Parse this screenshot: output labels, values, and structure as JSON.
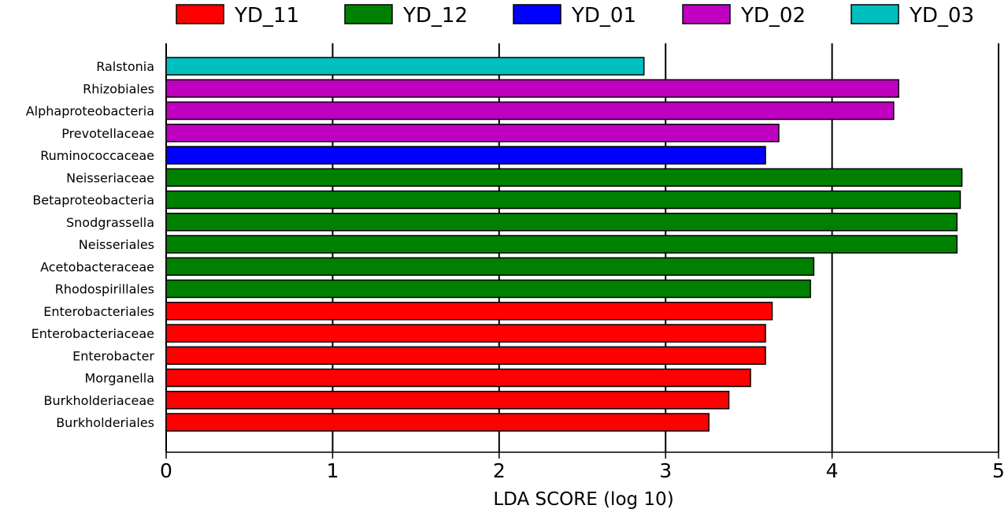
{
  "chart_data": {
    "type": "bar",
    "orientation": "horizontal",
    "title": "",
    "xlabel": "LDA SCORE (log 10)",
    "ylabel": "",
    "xlim": [
      0,
      5
    ],
    "xticks": [
      "0",
      "1",
      "2",
      "3",
      "4",
      "5"
    ],
    "grid": true,
    "legend_position": "top",
    "legend": [
      {
        "name": "YD_11",
        "color": "#ff0000"
      },
      {
        "name": "YD_12",
        "color": "#008000"
      },
      {
        "name": "YD_01",
        "color": "#0000ff"
      },
      {
        "name": "YD_02",
        "color": "#c000c0"
      },
      {
        "name": "YD_03",
        "color": "#00bfbf"
      }
    ],
    "bars": [
      {
        "label": "Ralstonia",
        "value": 2.87,
        "group": "YD_03"
      },
      {
        "label": "Rhizobiales",
        "value": 4.4,
        "group": "YD_02"
      },
      {
        "label": "Alphaproteobacteria",
        "value": 4.37,
        "group": "YD_02"
      },
      {
        "label": "Prevotellaceae",
        "value": 3.68,
        "group": "YD_02"
      },
      {
        "label": "Ruminococcaceae",
        "value": 3.6,
        "group": "YD_01"
      },
      {
        "label": "Neisseriaceae",
        "value": 4.78,
        "group": "YD_12"
      },
      {
        "label": "Betaproteobacteria",
        "value": 4.77,
        "group": "YD_12"
      },
      {
        "label": "Snodgrassella",
        "value": 4.75,
        "group": "YD_12"
      },
      {
        "label": "Neisseriales",
        "value": 4.75,
        "group": "YD_12"
      },
      {
        "label": "Acetobacteraceae",
        "value": 3.89,
        "group": "YD_12"
      },
      {
        "label": "Rhodospirillales",
        "value": 3.87,
        "group": "YD_12"
      },
      {
        "label": "Enterobacteriales",
        "value": 3.64,
        "group": "YD_11"
      },
      {
        "label": "Enterobacteriaceae",
        "value": 3.6,
        "group": "YD_11"
      },
      {
        "label": "Enterobacter",
        "value": 3.6,
        "group": "YD_11"
      },
      {
        "label": "Morganella",
        "value": 3.51,
        "group": "YD_11"
      },
      {
        "label": "Burkholderiaceae",
        "value": 3.38,
        "group": "YD_11"
      },
      {
        "label": "Burkholderiales",
        "value": 3.26,
        "group": "YD_11"
      }
    ]
  }
}
